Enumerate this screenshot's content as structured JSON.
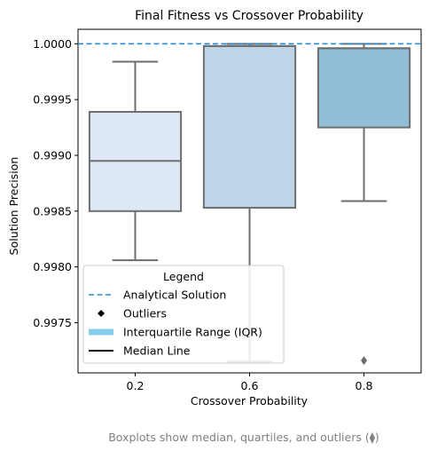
{
  "chart_data": {
    "type": "box",
    "title": "Final Fitness vs Crossover Probability",
    "xlabel": "Crossover Probability",
    "ylabel": "Solution Precision",
    "categories": [
      "0.2",
      "0.6",
      "0.8"
    ],
    "ylim": [
      0.99705,
      1.00013
    ],
    "yticks": [
      "0.9975",
      "0.9980",
      "0.9985",
      "0.9990",
      "0.9995",
      "1.0000"
    ],
    "yticks_values": [
      0.9975,
      0.998,
      0.9985,
      0.999,
      0.9995,
      1.0
    ],
    "boxes": [
      {
        "category": "0.2",
        "whisker_low": 0.99806,
        "q1": 0.9985,
        "median": 0.99895,
        "q3": 0.99939,
        "whisker_high": 0.99984,
        "outliers": [],
        "color": "#dde8f4"
      },
      {
        "category": "0.6",
        "whisker_low": 0.99715,
        "q1": 0.99853,
        "median": 0.99998,
        "q3": 0.99998,
        "whisker_high": 1.0,
        "outliers": [],
        "color": "#bed4e7"
      },
      {
        "category": "0.8",
        "whisker_low": 0.99859,
        "q1": 0.99925,
        "median": 0.99996,
        "q3": 0.99996,
        "whisker_high": 1.0,
        "outliers": [
          0.99716
        ],
        "color": "#93bed8"
      }
    ],
    "reference_line": {
      "value": 1.0,
      "label": "Analytical Solution",
      "color": "#2a90d6"
    },
    "legend": {
      "title": "Legend",
      "placement": "lower-left",
      "entries": [
        {
          "label": "Analytical Solution",
          "kind": "dashed-line",
          "color": "#2a90d6"
        },
        {
          "label": "Outliers",
          "kind": "diamond",
          "color": "#000000"
        },
        {
          "label": "Interquartile Range (IQR)",
          "kind": "thick-line",
          "color": "#87ceeb"
        },
        {
          "label": "Median Line",
          "kind": "line",
          "color": "#000000"
        }
      ]
    },
    "caption": "Boxplots show median, quartiles, and outliers (⧫)"
  }
}
